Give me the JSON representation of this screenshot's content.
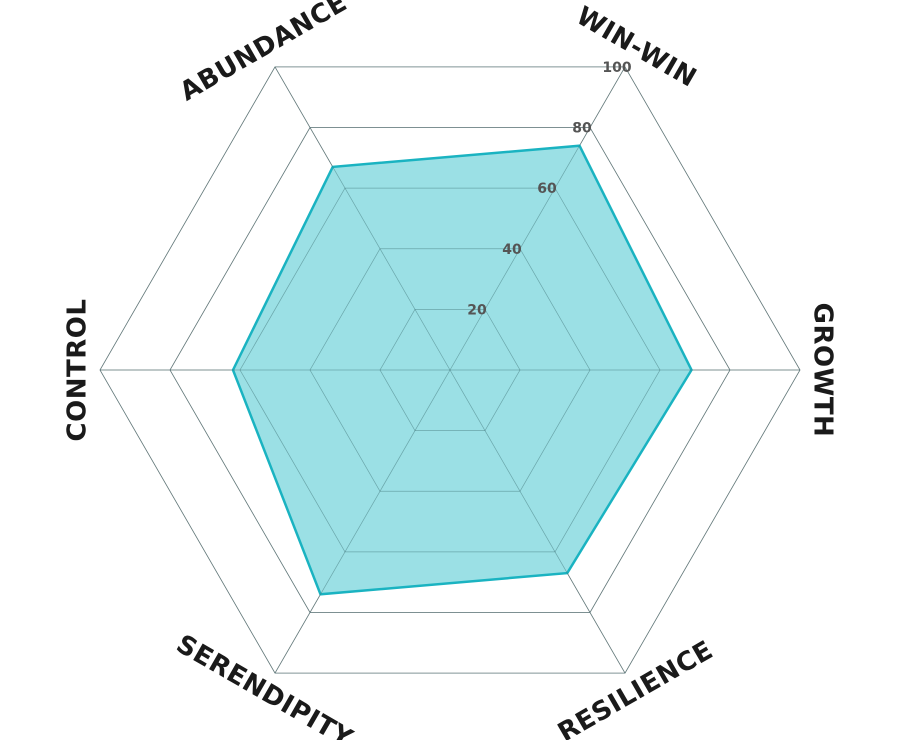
{
  "chart_data": {
    "type": "radar",
    "categories": [
      "WIN-WIN",
      "GROWTH",
      "RESILIENCE",
      "SERENDIPITY",
      "CONTROL",
      "ABUNDANCE"
    ],
    "values": [
      74,
      69,
      67,
      74,
      62,
      67
    ],
    "color": "#1ab3c1",
    "fill": "#9be0e5",
    "rlim": [
      0,
      100
    ],
    "rticks": [
      20,
      40,
      60,
      80,
      100
    ],
    "grid": true
  }
}
